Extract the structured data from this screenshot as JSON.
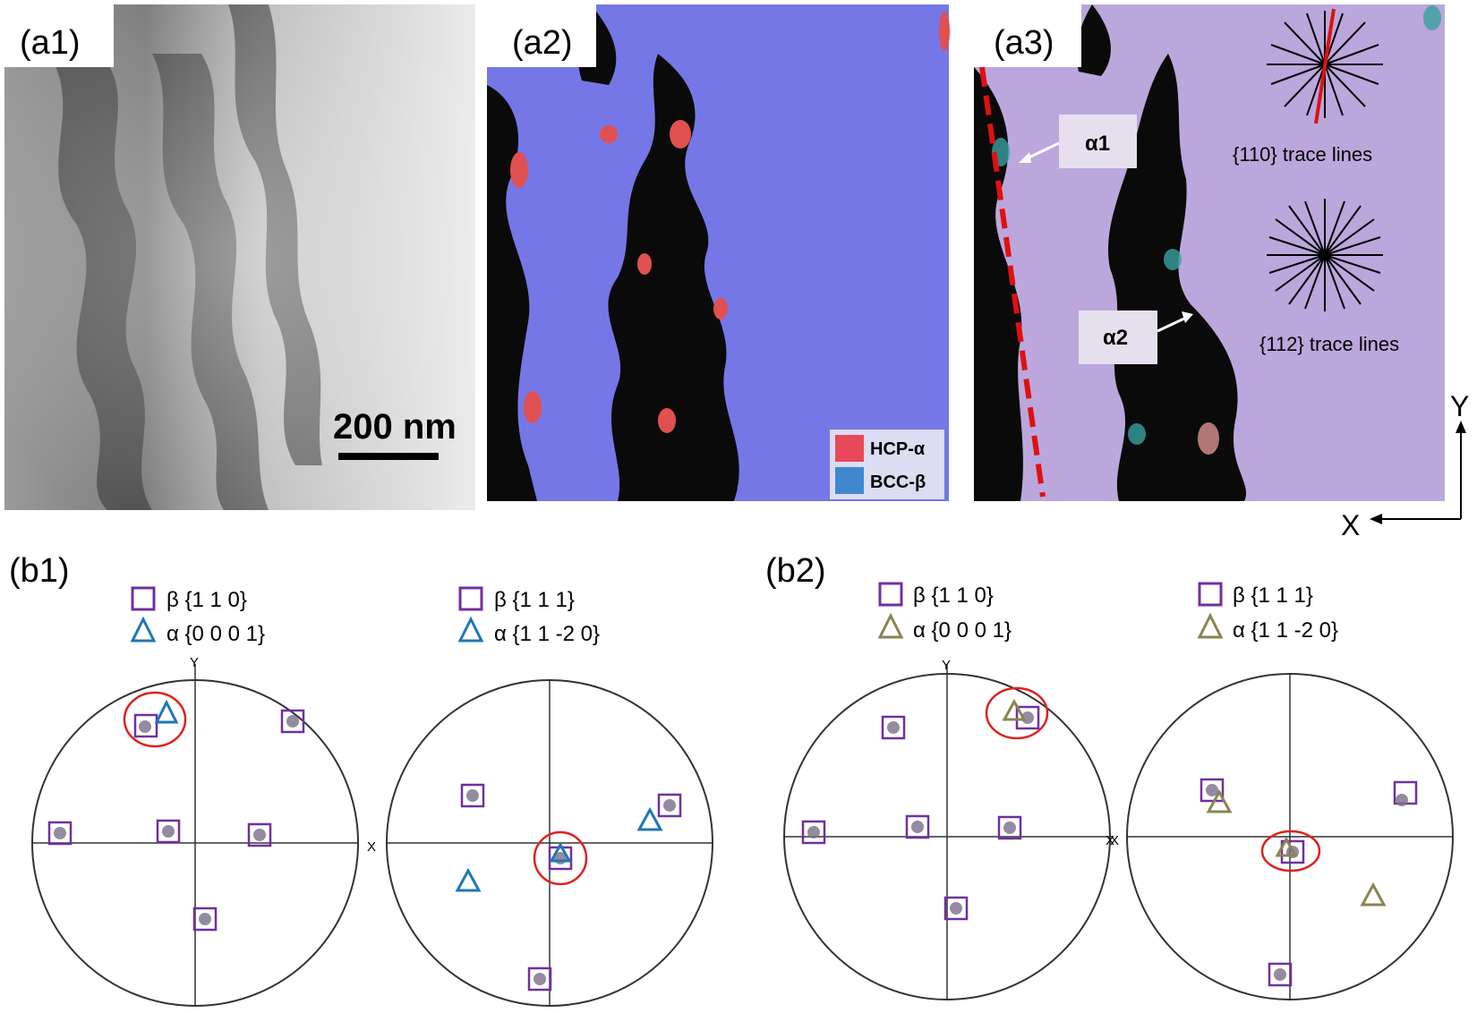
{
  "panels": {
    "a1": {
      "label": "(a1)",
      "scale_bar": "200 nm"
    },
    "a2": {
      "label": "(a2)",
      "legend": [
        {
          "name": "HCP-α",
          "color": "#e8485a"
        },
        {
          "name": "BCC-β",
          "color": "#3f88cf"
        }
      ]
    },
    "a3": {
      "label": "(a3)",
      "alpha1": "α1",
      "alpha2": "α2",
      "trace110": "{110} trace lines",
      "trace112": "{112} trace lines"
    },
    "axes": {
      "y": "Y",
      "x": "X"
    }
  },
  "b1": {
    "label": "(b1)",
    "left": {
      "legend_sq": "β {1 1 0}",
      "legend_tri": "α {0 0 0 1}",
      "pole_y": "Y",
      "pole_x": "X"
    },
    "right": {
      "legend_sq": "β {1 1 1}",
      "legend_tri": "α {1 1 -2 0}"
    },
    "tri_color": "#1f77b4"
  },
  "b2": {
    "label": "(b2)",
    "left": {
      "legend_sq": "β {1 1 0}",
      "legend_tri": "α {0 0 0 1}",
      "pole_y": "Y",
      "pole_x": "X"
    },
    "right": {
      "legend_sq": "β {1 1 1}",
      "legend_tri": "α {1 1 -2 0}"
    },
    "tri_color": "#8a8450"
  },
  "colors": {
    "square": "#7030a0",
    "circle": "#e02020",
    "bcc_map": "#7677e6",
    "a3_map": "#bba7dc"
  }
}
